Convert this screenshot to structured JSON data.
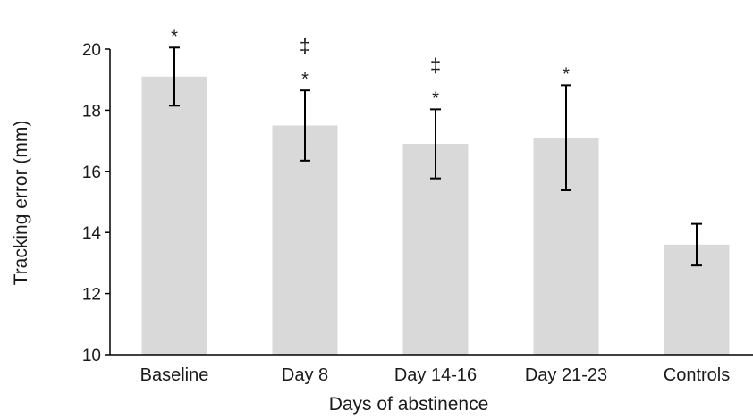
{
  "chart_data": {
    "type": "bar",
    "title": "",
    "xlabel": "Days of abstinence",
    "ylabel": "Tracking error (mm)",
    "ylim": [
      10,
      20
    ],
    "yticks": [
      10,
      12,
      14,
      16,
      18,
      20
    ],
    "grid": false,
    "legend": "none",
    "categories": [
      "Baseline",
      "Day 8",
      "Day 14-16",
      "Day 21-23",
      "Controls"
    ],
    "values": [
      19.1,
      17.5,
      16.9,
      17.1,
      13.6
    ],
    "error": [
      0.95,
      1.15,
      1.13,
      1.72,
      0.68
    ],
    "annotations": [
      {
        "category": "Baseline",
        "marks": [
          "*"
        ]
      },
      {
        "category": "Day 8",
        "marks": [
          "‡",
          "*"
        ]
      },
      {
        "category": "Day 14-16",
        "marks": [
          "‡",
          "*"
        ]
      },
      {
        "category": "Day 21-23",
        "marks": [
          "*"
        ]
      },
      {
        "category": "Controls",
        "marks": []
      }
    ],
    "colors": {
      "bar": "#d9d9d9",
      "error_bar": "#000000",
      "axis": "#000000"
    }
  }
}
